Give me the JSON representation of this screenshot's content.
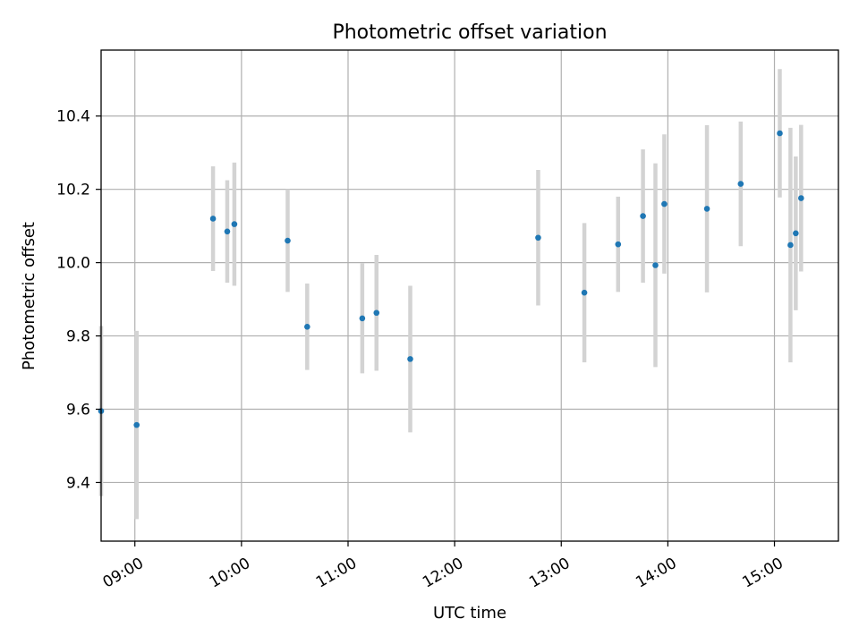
{
  "chart_data": {
    "type": "scatter",
    "title": "Photometric offset variation",
    "xlabel": "UTC time",
    "ylabel": "Photometric offset",
    "x_ticks": [
      "09:00",
      "10:00",
      "11:00",
      "12:00",
      "13:00",
      "14:00",
      "15:00"
    ],
    "y_ticks": [
      "9.4",
      "9.6",
      "9.8",
      "10.0",
      "10.2",
      "10.4"
    ],
    "xlim": [
      "08:41",
      "15:36"
    ],
    "ylim": [
      9.24,
      10.58
    ],
    "grid": true,
    "colors": {
      "points": "#1f77b4",
      "error_bars": "#d3d3d3",
      "grid": "#b0b0b0"
    },
    "points": [
      {
        "x": "08:41",
        "y": 9.595,
        "err": 0.232
      },
      {
        "x": "09:01",
        "y": 9.557,
        "err": 0.257
      },
      {
        "x": "09:44",
        "y": 10.12,
        "err": 0.143
      },
      {
        "x": "09:52",
        "y": 10.085,
        "err": 0.14
      },
      {
        "x": "09:56",
        "y": 10.105,
        "err": 0.168
      },
      {
        "x": "10:26",
        "y": 10.06,
        "err": 0.14
      },
      {
        "x": "10:37",
        "y": 9.825,
        "err": 0.118
      },
      {
        "x": "11:08",
        "y": 9.848,
        "err": 0.15
      },
      {
        "x": "11:16",
        "y": 9.863,
        "err": 0.158
      },
      {
        "x": "11:35",
        "y": 9.737,
        "err": 0.2
      },
      {
        "x": "12:47",
        "y": 10.068,
        "err": 0.185
      },
      {
        "x": "13:13",
        "y": 9.918,
        "err": 0.19
      },
      {
        "x": "13:32",
        "y": 10.05,
        "err": 0.13
      },
      {
        "x": "13:46",
        "y": 10.127,
        "err": 0.182
      },
      {
        "x": "13:53",
        "y": 9.993,
        "err": 0.278
      },
      {
        "x": "13:58",
        "y": 10.16,
        "err": 0.19
      },
      {
        "x": "14:22",
        "y": 10.147,
        "err": 0.228
      },
      {
        "x": "14:41",
        "y": 10.215,
        "err": 0.17
      },
      {
        "x": "15:03",
        "y": 10.353,
        "err": 0.175
      },
      {
        "x": "15:09",
        "y": 10.048,
        "err": 0.32
      },
      {
        "x": "15:12",
        "y": 10.08,
        "err": 0.21
      },
      {
        "x": "15:15",
        "y": 10.176,
        "err": 0.2
      }
    ]
  }
}
